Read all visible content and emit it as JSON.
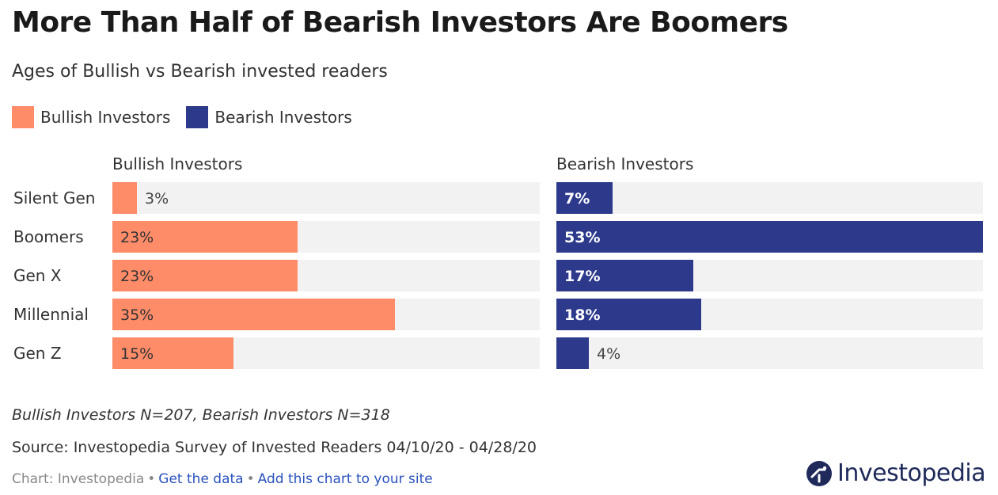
{
  "title": "More Than Half of Bearish Investors Are Boomers",
  "subtitle": "Ages of Bullish vs Bearish invested readers",
  "legend": [
    {
      "label": "Bullish Investors",
      "color": "#ff8c69"
    },
    {
      "label": "Bearish Investors",
      "color": "#2d3a8c"
    }
  ],
  "chart_data": {
    "type": "bar",
    "orientation": "horizontal",
    "layout": "small-multiples",
    "categories": [
      "Silent Gen",
      "Boomers",
      "Gen X",
      "Millennial",
      "Gen Z"
    ],
    "series": [
      {
        "name": "Bullish Investors",
        "color": "#ff8c69",
        "values": [
          3,
          23,
          23,
          35,
          15
        ],
        "labels": [
          "3%",
          "23%",
          "23%",
          "35%",
          "15%"
        ]
      },
      {
        "name": "Bearish Investors",
        "color": "#2d3a8c",
        "values": [
          7,
          53,
          17,
          18,
          4
        ],
        "labels": [
          "7%",
          "53%",
          "17%",
          "18%",
          "4%"
        ]
      }
    ],
    "xlim": [
      0,
      53
    ],
    "unit": "%",
    "background_color": "#f2f2f2"
  },
  "footer": {
    "note": "Bullish Investors N=207, Bearish Investors N=318",
    "source": "Source: Investopedia Survey of Invested Readers 04/10/20 - 04/28/20",
    "credit_prefix": "Chart: Investopedia",
    "separator": "•",
    "get_data": "Get the data",
    "add_chart": "Add this chart to your site"
  },
  "logo": {
    "text": "Investopedia",
    "icon": "investopedia-logo-icon"
  }
}
